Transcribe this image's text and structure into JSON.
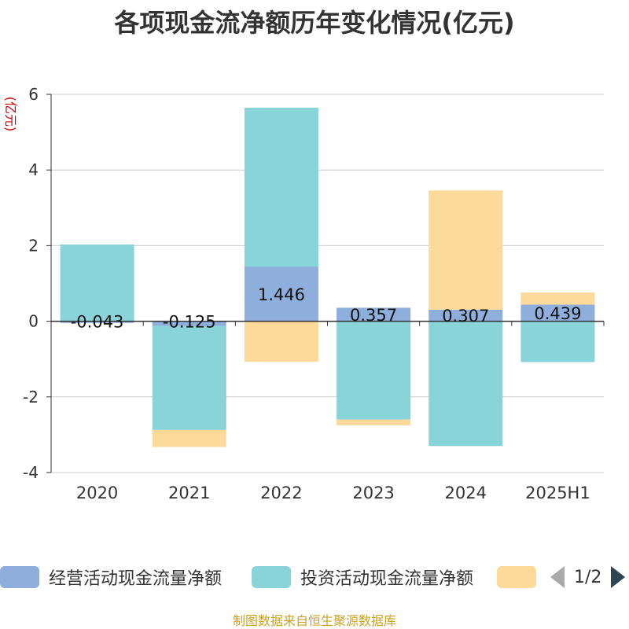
{
  "title": "各项现金流净额历年变化情况(亿元)",
  "source": "制图数据来自恒生聚源数据库",
  "legend": {
    "items": [
      {
        "label": "经营活动现金流量净额",
        "color": "#8eaedc"
      },
      {
        "label": "投资活动现金流量净额",
        "color": "#88d4d8"
      },
      {
        "label": "",
        "color": "#fdd99a"
      }
    ],
    "page": "1/2"
  },
  "chart_data": {
    "type": "bar",
    "stacked": true,
    "categories": [
      "2020",
      "2021",
      "2022",
      "2023",
      "2024",
      "2025H1"
    ],
    "ylabel": "(亿元)",
    "ylim": [
      -4,
      6
    ],
    "yticks": [
      -4,
      -2,
      0,
      2,
      4,
      6
    ],
    "grid": true,
    "series": [
      {
        "name": "经营活动现金流量净额",
        "color": "#8eaedc",
        "values": [
          -0.043,
          -0.125,
          1.446,
          0.357,
          0.307,
          0.439
        ],
        "labels": [
          "-0.043",
          "-0.125",
          "1.446",
          "0.357",
          "0.307",
          "0.439"
        ]
      },
      {
        "name": "投资活动现金流量净额",
        "color": "#88d4d8",
        "values": [
          2.03,
          -2.75,
          4.2,
          -2.6,
          -3.3,
          -1.08
        ]
      },
      {
        "name": "",
        "color": "#fdd99a",
        "values": [
          0.0,
          -0.45,
          -1.07,
          -0.15,
          3.15,
          0.32
        ]
      }
    ]
  }
}
